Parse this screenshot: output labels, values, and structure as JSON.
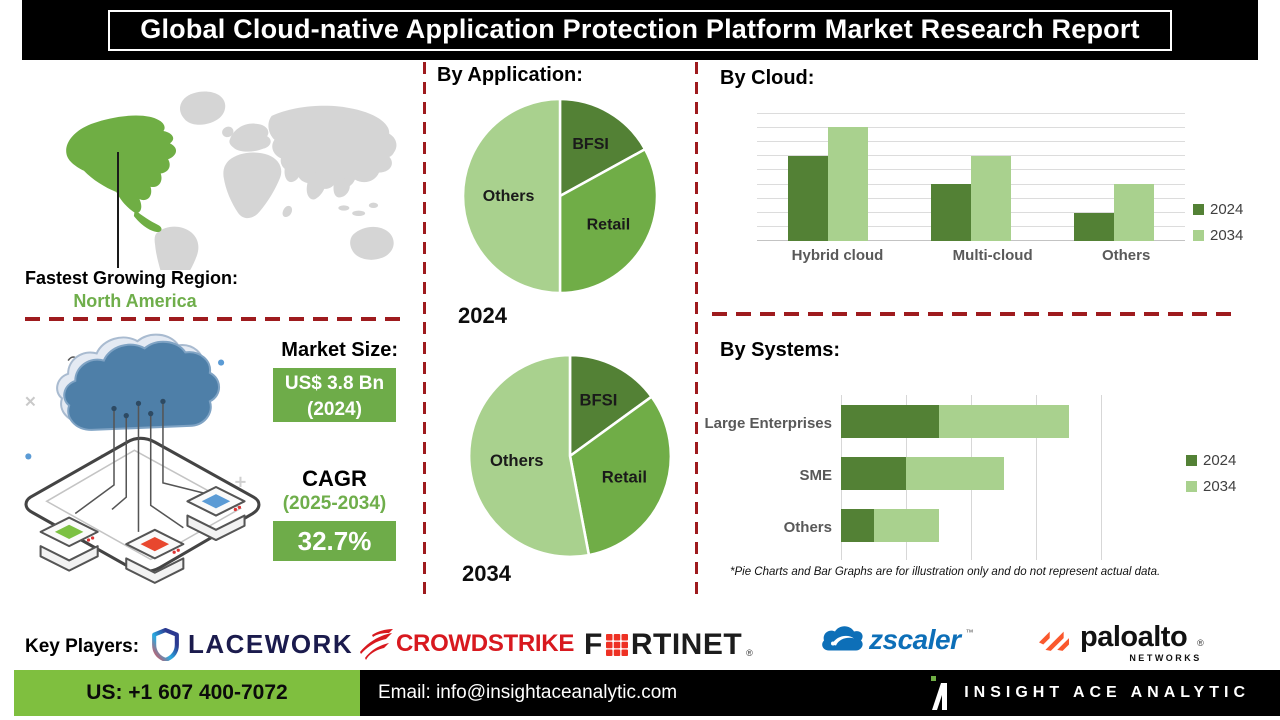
{
  "title": "Global Cloud-native Application Protection Platform Market Research Report",
  "region": {
    "label": "Fastest Growing Region:",
    "value": "North America"
  },
  "market": {
    "label": "Market Size:",
    "size_value": "US$ 3.8 Bn",
    "size_year": "(2024)",
    "cagr_label": "CAGR",
    "cagr_period": "(2025-2034)",
    "cagr_value": "32.7%"
  },
  "chart_data": [
    {
      "id": "app2024",
      "type": "pie",
      "section_title": "By Application:",
      "year_label": "2024",
      "legend_position": "none",
      "slices": [
        {
          "label": "BFSI",
          "pct": 17,
          "color_key": "green_dark"
        },
        {
          "label": "Retail",
          "pct": 33,
          "color_key": "green_mid"
        },
        {
          "label": "Others",
          "pct": 50,
          "color_key": "green_light"
        }
      ]
    },
    {
      "id": "app2034",
      "type": "pie",
      "section_title": "By Application:",
      "year_label": "2034",
      "legend_position": "none",
      "slices": [
        {
          "label": "BFSI",
          "pct": 15,
          "color_key": "green_dark"
        },
        {
          "label": "Retail",
          "pct": 32,
          "color_key": "green_mid"
        },
        {
          "label": "Others",
          "pct": 53,
          "color_key": "green_light"
        }
      ]
    },
    {
      "id": "cloud",
      "type": "bar",
      "section_title": "By Cloud:",
      "categories": [
        "Hybrid cloud",
        "Multi-cloud",
        "Others"
      ],
      "series": [
        {
          "name": "2024",
          "color_key": "green_dark",
          "values": [
            6,
            4,
            2
          ]
        },
        {
          "name": "2034",
          "color_key": "green_light",
          "values": [
            8,
            6,
            4
          ]
        }
      ],
      "ylim": [
        0,
        9
      ],
      "grid": "horizontal",
      "legend_position": "right"
    },
    {
      "id": "systems",
      "type": "stacked-hbar",
      "section_title": "By Systems:",
      "categories": [
        "Large Enterprises",
        "SME",
        "Others"
      ],
      "series": [
        {
          "name": "2024",
          "color_key": "green_dark",
          "values": [
            1.5,
            1.0,
            0.5
          ]
        },
        {
          "name": "2034",
          "color_key": "green_light",
          "values": [
            2.0,
            1.5,
            1.0
          ]
        }
      ],
      "xlim": [
        0,
        4
      ],
      "grid": "vertical",
      "legend_position": "right"
    }
  ],
  "disclaimer": "*Pie Charts and Bar Graphs are for illustration only and do not represent actual data.",
  "key_players": {
    "label": "Key Players:",
    "lacework_text": "LACEWORK",
    "lacework_dot": ".",
    "crowdstrike_text": "CROWDSTRIKE",
    "fortinet_prefix": "F",
    "fortinet_suffix": "RTINET",
    "fortinet_reg": "®",
    "zscaler_text": "zscaler",
    "zscaler_tm": "™",
    "paloalto_text": "paloalto",
    "paloalto_reg": "®",
    "paloalto_sub": "NETWORKS"
  },
  "footer": {
    "phone": "US: +1 607 400-7072",
    "email": "Email: info@insightaceanalytic.com",
    "brand": "INSIGHT ACE ANALYTIC"
  },
  "colors": {
    "green_dark": "#538135",
    "green_mid": "#70AD47",
    "green_light": "#A9D18E",
    "dash_red": "#9E1B1E",
    "map_gray": "#D5D5D5",
    "map_highlight": "#6FAE44",
    "box_green": "#6EAC49",
    "footer_green": "#7FBF3F",
    "text_green": "#6FAE4B"
  }
}
